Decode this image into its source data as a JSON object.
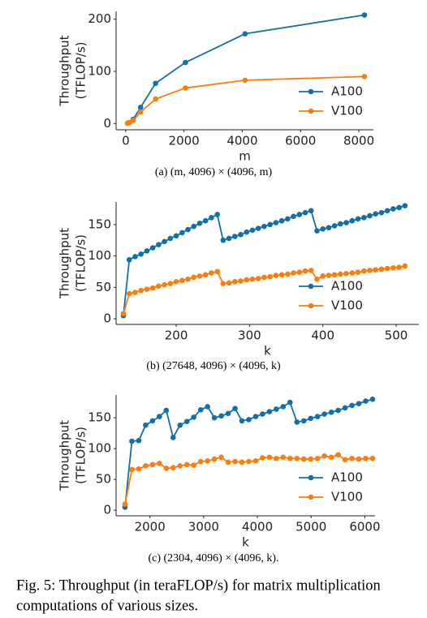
{
  "chart_data": [
    {
      "type": "line",
      "caption": "(a) (m, 4096) × (4096, m)",
      "xlabel": "m",
      "ylabel": [
        "Throughput",
        "(TFLOP/s)"
      ],
      "x": [
        64,
        128,
        256,
        512,
        1024,
        2048,
        4096,
        8192
      ],
      "series": [
        {
          "name": "A100",
          "color": "#1170aa",
          "values": [
            0.5,
            2,
            8,
            31,
            77,
            117,
            172,
            208
          ]
        },
        {
          "name": "V100",
          "color": "#fc7d0b",
          "values": [
            0.5,
            2,
            6,
            22,
            47,
            68,
            83,
            90
          ]
        }
      ],
      "xlim": [
        -330,
        8500
      ],
      "xticks": [
        0,
        2000,
        4000,
        6000,
        8000
      ],
      "ylim": [
        -12,
        215
      ],
      "yticks": [
        0,
        100,
        200
      ],
      "legend": "lower right"
    },
    {
      "type": "line",
      "caption": "(b) (27648, 4096) × (4096, k)",
      "xlabel": "k",
      "ylabel": [
        "Throughput",
        "(TFLOP/s)"
      ],
      "x": [
        128,
        136,
        144,
        152,
        160,
        168,
        176,
        184,
        192,
        200,
        208,
        216,
        224,
        232,
        240,
        248,
        256,
        264,
        272,
        280,
        288,
        296,
        304,
        312,
        320,
        328,
        336,
        344,
        352,
        360,
        368,
        376,
        384,
        392,
        400,
        408,
        416,
        424,
        432,
        440,
        448,
        456,
        464,
        472,
        480,
        488,
        496,
        504,
        512
      ],
      "series": [
        {
          "name": "A100",
          "color": "#1170aa",
          "values": [
            5,
            94,
            99,
            103,
            108,
            113,
            118,
            123,
            128,
            132,
            137,
            142,
            147,
            152,
            156,
            161,
            166,
            125,
            128,
            131,
            134,
            138,
            141,
            144,
            147,
            150,
            153,
            156,
            159,
            163,
            166,
            169,
            172,
            140,
            143,
            145,
            148,
            151,
            153,
            156,
            159,
            161,
            164,
            167,
            169,
            172,
            175,
            177,
            180
          ]
        },
        {
          "name": "V100",
          "color": "#fc7d0b",
          "values": [
            8,
            40,
            42,
            45,
            47,
            49,
            52,
            54,
            56,
            59,
            61,
            63,
            66,
            68,
            70,
            73,
            75,
            56,
            57,
            59,
            60,
            62,
            63,
            64,
            66,
            67,
            69,
            70,
            71,
            73,
            74,
            76,
            77,
            63,
            68,
            69,
            70,
            71,
            72,
            73,
            74,
            76,
            77,
            78,
            79,
            80,
            81,
            82,
            84
          ]
        }
      ],
      "xlim": [
        118,
        531
      ],
      "xticks": [
        200,
        300,
        400,
        500
      ],
      "ylim": [
        -9,
        186
      ],
      "yticks": [
        0,
        50,
        100,
        150
      ],
      "legend": "lower right"
    },
    {
      "type": "line",
      "caption": "(c) (2304, 4096) × (4096, k).",
      "xlabel": "k",
      "ylabel": [
        "Throughput",
        "(TFLOP/s)"
      ],
      "x": [
        1536,
        1664,
        1792,
        1920,
        2048,
        2176,
        2304,
        2432,
        2560,
        2688,
        2816,
        2944,
        3072,
        3200,
        3328,
        3456,
        3584,
        3712,
        3840,
        3968,
        4096,
        4224,
        4352,
        4480,
        4608,
        4736,
        4864,
        4992,
        5120,
        5248,
        5376,
        5504,
        5632,
        5760,
        5888,
        6016,
        6144
      ],
      "series": [
        {
          "name": "A100",
          "color": "#1170aa",
          "values": [
            5,
            112,
            113,
            138,
            145,
            152,
            162,
            118,
            138,
            144,
            151,
            163,
            168,
            150,
            153,
            157,
            165,
            145,
            147,
            152,
            156,
            160,
            164,
            168,
            175,
            143,
            145,
            149,
            152,
            156,
            159,
            162,
            166,
            170,
            173,
            177,
            180
          ]
        },
        {
          "name": "V100",
          "color": "#fc7d0b",
          "values": [
            10,
            66,
            67,
            72,
            74,
            76,
            68,
            69,
            72,
            74,
            73,
            79,
            80,
            83,
            86,
            78,
            79,
            78,
            79,
            80,
            85,
            86,
            84,
            86,
            84,
            84,
            83,
            83,
            84,
            88,
            86,
            90,
            82,
            84,
            83,
            84,
            84
          ]
        }
      ],
      "xlim": [
        1370,
        6190
      ],
      "xticks": [
        2000,
        3000,
        4000,
        5000,
        6000
      ],
      "ylim": [
        -9,
        187
      ],
      "yticks": [
        0,
        50,
        100,
        150
      ],
      "legend": "lower right"
    }
  ],
  "figure_caption": [
    "Fig. 5: Throughput (in teraFLOP/s) for matrix multiplication",
    "computations of various sizes."
  ]
}
